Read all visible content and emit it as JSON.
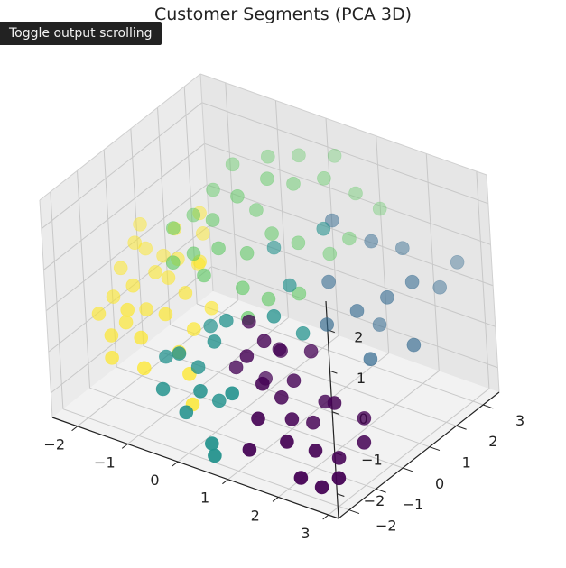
{
  "tooltip": {
    "label": "Toggle output scrolling"
  },
  "chart_data": {
    "type": "scatter",
    "title": "Customer Segments (PCA 3D)",
    "xlabel": "",
    "ylabel": "",
    "zlabel": "",
    "xlim": [
      -2.5,
      3.2
    ],
    "ylim": [
      -2.4,
      3.6
    ],
    "zlim": [
      -2.6,
      2.7
    ],
    "x_ticks": [
      -2,
      -1,
      0,
      1,
      2,
      3
    ],
    "y_ticks": [
      -2,
      -1,
      0,
      1,
      2,
      3
    ],
    "z_ticks": [
      -2,
      -1,
      0,
      1,
      2
    ],
    "grid": true,
    "colormap": "viridis",
    "cluster_colors": [
      "#440154",
      "#31688e",
      "#21918c",
      "#5ec962",
      "#fde725"
    ],
    "clusters": [
      0,
      1,
      2,
      3,
      4
    ],
    "points": [
      {
        "x": 0.9,
        "y": -1.3,
        "z": -0.2,
        "c": 0
      },
      {
        "x": 1.1,
        "y": -1.0,
        "z": 0.1,
        "c": 0
      },
      {
        "x": 1.3,
        "y": -1.5,
        "z": -0.6,
        "c": 0
      },
      {
        "x": 1.5,
        "y": -1.2,
        "z": -1.0,
        "c": 0
      },
      {
        "x": 1.8,
        "y": -1.4,
        "z": -1.3,
        "c": 0
      },
      {
        "x": 2.0,
        "y": -1.0,
        "z": -1.5,
        "c": 0
      },
      {
        "x": 2.3,
        "y": -1.5,
        "z": -1.8,
        "c": 0
      },
      {
        "x": 2.6,
        "y": -1.2,
        "z": -2.0,
        "c": 0
      },
      {
        "x": 2.8,
        "y": -1.6,
        "z": -2.2,
        "c": 0
      },
      {
        "x": 0.7,
        "y": -0.8,
        "z": 0.3,
        "c": 0
      },
      {
        "x": 1.2,
        "y": -0.6,
        "z": -0.3,
        "c": 0
      },
      {
        "x": 1.6,
        "y": -0.9,
        "z": -0.7,
        "c": 0
      },
      {
        "x": 2.1,
        "y": -0.7,
        "z": -1.1,
        "c": 0
      },
      {
        "x": 2.4,
        "y": -0.9,
        "z": -0.9,
        "c": 0
      },
      {
        "x": 1.9,
        "y": -1.8,
        "z": -1.6,
        "c": 0
      },
      {
        "x": 1.4,
        "y": -1.9,
        "z": -1.2,
        "c": 0
      },
      {
        "x": 2.7,
        "y": -0.4,
        "z": -1.4,
        "c": 0
      },
      {
        "x": 1.0,
        "y": -0.3,
        "z": -0.5,
        "c": 0
      },
      {
        "x": 2.2,
        "y": -1.9,
        "z": -2.3,
        "c": 0
      },
      {
        "x": 1.7,
        "y": -0.4,
        "z": -0.2,
        "c": 0
      },
      {
        "x": 0.5,
        "y": -1.0,
        "z": -0.8,
        "c": 0
      },
      {
        "x": 2.9,
        "y": -0.8,
        "z": -1.7,
        "c": 0
      },
      {
        "x": 1.3,
        "y": -2.1,
        "z": -1.9,
        "c": 0
      },
      {
        "x": 2.5,
        "y": -1.7,
        "z": -2.5,
        "c": 0
      },
      {
        "x": 0.8,
        "y": -0.5,
        "z": -1.2,
        "c": 0
      },
      {
        "x": 1.6,
        "y": 0.4,
        "z": 0.0,
        "c": 1
      },
      {
        "x": 2.0,
        "y": 0.8,
        "z": 0.3,
        "c": 1
      },
      {
        "x": 2.4,
        "y": 1.2,
        "z": 0.6,
        "c": 1
      },
      {
        "x": 2.7,
        "y": 1.6,
        "z": 0.9,
        "c": 1
      },
      {
        "x": 1.8,
        "y": 1.8,
        "z": 1.4,
        "c": 1
      },
      {
        "x": 2.2,
        "y": 2.2,
        "z": 1.2,
        "c": 1
      },
      {
        "x": 2.8,
        "y": 2.4,
        "z": 0.4,
        "c": 1
      },
      {
        "x": 1.4,
        "y": 0.9,
        "z": 0.7,
        "c": 1
      },
      {
        "x": 2.5,
        "y": 0.3,
        "z": -0.4,
        "c": 1
      },
      {
        "x": 3.0,
        "y": 1.0,
        "z": -0.2,
        "c": 1
      },
      {
        "x": 1.2,
        "y": 1.5,
        "z": 1.8,
        "c": 1
      },
      {
        "x": 2.9,
        "y": 2.9,
        "z": 0.8,
        "c": 1
      },
      {
        "x": 2.1,
        "y": 1.4,
        "z": -0.3,
        "c": 1
      },
      {
        "x": -0.3,
        "y": -1.6,
        "z": -0.5,
        "c": 2
      },
      {
        "x": -0.1,
        "y": -1.3,
        "z": -0.9,
        "c": 2
      },
      {
        "x": 0.2,
        "y": -1.8,
        "z": -1.1,
        "c": 2
      },
      {
        "x": 0.0,
        "y": -2.0,
        "z": -1.6,
        "c": 2
      },
      {
        "x": 0.4,
        "y": -1.5,
        "z": -1.4,
        "c": 2
      },
      {
        "x": -0.5,
        "y": -1.9,
        "z": -1.3,
        "c": 2
      },
      {
        "x": 0.6,
        "y": -2.2,
        "z": -2.0,
        "c": 2
      },
      {
        "x": 0.9,
        "y": -1.9,
        "z": -0.8,
        "c": 2
      },
      {
        "x": 0.3,
        "y": -0.9,
        "z": 0.2,
        "c": 2
      },
      {
        "x": 1.0,
        "y": 0.2,
        "z": 0.8,
        "c": 2
      },
      {
        "x": 0.5,
        "y": 0.6,
        "z": 1.3,
        "c": 2
      },
      {
        "x": 1.3,
        "y": 1.0,
        "z": 1.9,
        "c": 2
      },
      {
        "x": -0.2,
        "y": -0.6,
        "z": -0.3,
        "c": 2
      },
      {
        "x": 0.7,
        "y": -2.3,
        "z": -2.2,
        "c": 2
      },
      {
        "x": 1.1,
        "y": -0.6,
        "z": 0.5,
        "c": 2
      },
      {
        "x": -0.8,
        "y": -1.2,
        "z": -1.0,
        "c": 2
      },
      {
        "x": 0.2,
        "y": -1.2,
        "z": -0.2,
        "c": 2
      },
      {
        "x": 1.5,
        "y": -0.3,
        "z": 0.1,
        "c": 2
      },
      {
        "x": -0.6,
        "y": 0.4,
        "z": 1.6,
        "c": 3
      },
      {
        "x": -0.3,
        "y": 0.8,
        "z": 2.1,
        "c": 3
      },
      {
        "x": 0.1,
        "y": 1.2,
        "z": 2.5,
        "c": 3
      },
      {
        "x": -0.9,
        "y": 1.0,
        "z": 1.9,
        "c": 3
      },
      {
        "x": 0.4,
        "y": 1.6,
        "z": 2.3,
        "c": 3
      },
      {
        "x": 0.8,
        "y": 2.0,
        "z": 2.4,
        "c": 3
      },
      {
        "x": 1.2,
        "y": 2.4,
        "z": 2.0,
        "c": 3
      },
      {
        "x": 1.5,
        "y": 2.7,
        "z": 1.6,
        "c": 3
      },
      {
        "x": -1.1,
        "y": 0.6,
        "z": 1.4,
        "c": 3
      },
      {
        "x": -0.4,
        "y": 0.2,
        "z": 1.1,
        "c": 3
      },
      {
        "x": 0.0,
        "y": 0.5,
        "z": 1.0,
        "c": 3
      },
      {
        "x": 0.3,
        "y": 0.9,
        "z": 1.4,
        "c": 3
      },
      {
        "x": 0.6,
        "y": 1.3,
        "z": 1.1,
        "c": 3
      },
      {
        "x": 1.0,
        "y": 1.7,
        "z": 0.8,
        "c": 3
      },
      {
        "x": -0.7,
        "y": 1.4,
        "z": 2.4,
        "c": 3
      },
      {
        "x": -0.2,
        "y": 1.8,
        "z": 2.6,
        "c": 3
      },
      {
        "x": 0.2,
        "y": 2.2,
        "z": 2.6,
        "c": 3
      },
      {
        "x": -1.3,
        "y": 0.2,
        "z": 1.2,
        "c": 3
      },
      {
        "x": -0.5,
        "y": -0.2,
        "z": 0.6,
        "c": 3
      },
      {
        "x": 0.1,
        "y": 0.1,
        "z": 0.4,
        "c": 3
      },
      {
        "x": 0.5,
        "y": 0.3,
        "z": 0.2,
        "c": 3
      },
      {
        "x": -0.8,
        "y": 0.0,
        "z": 0.9,
        "c": 3
      },
      {
        "x": 0.9,
        "y": 0.7,
        "z": 0.3,
        "c": 3
      },
      {
        "x": -0.1,
        "y": 1.1,
        "z": 1.7,
        "c": 3
      },
      {
        "x": 0.7,
        "y": 2.6,
        "z": 2.6,
        "c": 3
      },
      {
        "x": 1.3,
        "y": 1.9,
        "z": 1.2,
        "c": 3
      },
      {
        "x": -1.0,
        "y": -0.4,
        "z": 0.8,
        "c": 3
      },
      {
        "x": 0.4,
        "y": -0.3,
        "z": 0.0,
        "c": 3
      },
      {
        "x": -1.9,
        "y": -0.3,
        "z": -0.2,
        "c": 4
      },
      {
        "x": -1.6,
        "y": 0.0,
        "z": 0.1,
        "c": 4
      },
      {
        "x": -1.3,
        "y": 0.3,
        "z": 0.4,
        "c": 4
      },
      {
        "x": -1.1,
        "y": -0.6,
        "z": -0.4,
        "c": 4
      },
      {
        "x": -2.1,
        "y": 0.2,
        "z": 0.5,
        "c": 4
      },
      {
        "x": -1.8,
        "y": -0.8,
        "z": -0.8,
        "c": 4
      },
      {
        "x": -1.4,
        "y": -1.0,
        "z": -0.9,
        "c": 4
      },
      {
        "x": -0.9,
        "y": -0.2,
        "z": 0.0,
        "c": 4
      },
      {
        "x": -0.6,
        "y": -0.5,
        "z": -0.6,
        "c": 4
      },
      {
        "x": -2.2,
        "y": -0.5,
        "z": -0.5,
        "c": 4
      },
      {
        "x": -1.5,
        "y": 0.6,
        "z": 0.9,
        "c": 4
      },
      {
        "x": -1.0,
        "y": 0.5,
        "z": 0.3,
        "c": 4
      },
      {
        "x": -2.0,
        "y": -1.0,
        "z": -1.1,
        "c": 4
      },
      {
        "x": -1.7,
        "y": 0.5,
        "z": 0.2,
        "c": 4
      },
      {
        "x": -0.4,
        "y": -1.1,
        "z": -1.3,
        "c": 4
      },
      {
        "x": -0.2,
        "y": -1.4,
        "z": -1.8,
        "c": 4
      },
      {
        "x": -1.2,
        "y": -1.3,
        "z": -1.4,
        "c": 4
      },
      {
        "x": -2.3,
        "y": 0.0,
        "z": -0.1,
        "c": 4
      },
      {
        "x": -1.6,
        "y": -0.4,
        "z": -0.6,
        "c": 4
      },
      {
        "x": -0.8,
        "y": 0.2,
        "z": 0.6,
        "c": 4
      },
      {
        "x": -1.4,
        "y": 0.1,
        "z": 0.0,
        "c": 4
      },
      {
        "x": -2.0,
        "y": 0.4,
        "z": 0.3,
        "c": 4
      },
      {
        "x": -0.7,
        "y": -0.9,
        "z": -1.0,
        "c": 4
      },
      {
        "x": -1.9,
        "y": -1.2,
        "z": -1.5,
        "c": 4
      },
      {
        "x": -0.5,
        "y": 0.0,
        "z": -0.3,
        "c": 4
      },
      {
        "x": -1.1,
        "y": 0.9,
        "z": 0.8,
        "c": 4
      },
      {
        "x": -2.4,
        "y": -0.7,
        "z": -0.9,
        "c": 4
      },
      {
        "x": -1.7,
        "y": -0.9,
        "z": -0.4,
        "c": 4
      },
      {
        "x": -1.2,
        "y": 1.0,
        "z": 1.2,
        "c": 4
      },
      {
        "x": -2.2,
        "y": 0.6,
        "z": 0.7,
        "c": 4
      }
    ]
  }
}
